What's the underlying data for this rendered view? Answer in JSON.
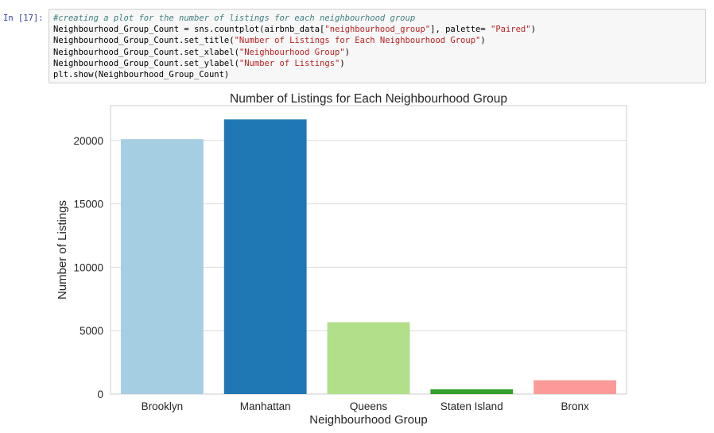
{
  "cell": {
    "prompt": "In [17]:",
    "lines": [
      [
        {
          "t": "#creating a plot for the number of listings for each neighbourhood group",
          "c": "cm"
        }
      ],
      [
        {
          "t": "Neighbourhood_Group_Count = sns.countplot(airbnb_data[",
          "c": ""
        },
        {
          "t": "\"neighbourhood_group\"",
          "c": "st"
        },
        {
          "t": "], palette= ",
          "c": ""
        },
        {
          "t": "\"Paired\"",
          "c": "st"
        },
        {
          "t": ")",
          "c": ""
        }
      ],
      [
        {
          "t": "Neighbourhood_Group_Count.set_title(",
          "c": ""
        },
        {
          "t": "\"Number of Listings for Each Neighbourhood Group\"",
          "c": "st"
        },
        {
          "t": ")",
          "c": ""
        }
      ],
      [
        {
          "t": "Neighbourhood_Group_Count.set_xlabel(",
          "c": ""
        },
        {
          "t": "\"Neighbourhood Group\"",
          "c": "st"
        },
        {
          "t": ")",
          "c": ""
        }
      ],
      [
        {
          "t": "Neighbourhood_Group_Count.set_ylabel(",
          "c": ""
        },
        {
          "t": "\"Number of Listings\"",
          "c": "st"
        },
        {
          "t": ")",
          "c": ""
        }
      ],
      [
        {
          "t": "plt.show(Neighbourhood_Group_Count)",
          "c": ""
        }
      ]
    ]
  },
  "chart_data": {
    "type": "bar",
    "title": "Number of Listings for Each Neighbourhood Group",
    "xlabel": "Neighbourhood Group",
    "ylabel": "Number of Listings",
    "categories": [
      "Brooklyn",
      "Manhattan",
      "Queens",
      "Staten Island",
      "Bronx"
    ],
    "values": [
      20104,
      21661,
      5666,
      373,
      1091
    ],
    "colors": [
      "#a6cee3",
      "#1f78b4",
      "#b2df8a",
      "#33a02c",
      "#fb9a99"
    ],
    "ylim": [
      0,
      22745
    ],
    "yticks": [
      0,
      5000,
      10000,
      15000,
      20000
    ],
    "grid": true
  }
}
